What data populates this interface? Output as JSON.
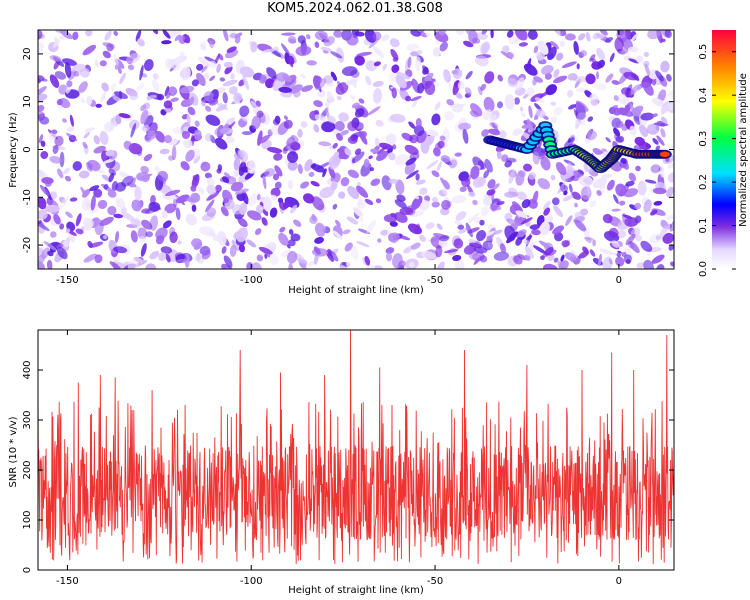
{
  "title": "KOM5.2024.062.01.38.G08",
  "chart_data": [
    {
      "type": "heatmap",
      "xlabel": "Height of straight line (km)",
      "ylabel": "Frequency (Hz)",
      "xlim": [
        -158,
        15
      ],
      "ylim": [
        -25,
        25
      ],
      "xticks": [
        -150,
        -100,
        -50,
        0
      ],
      "yticks": [
        -20,
        -10,
        0,
        10,
        20
      ],
      "colorbar": {
        "label": "Normalized spectral amplitude",
        "range": [
          0,
          0.55
        ],
        "ticks": [
          0.0,
          0.1,
          0.2,
          0.3,
          0.4,
          0.5
        ]
      },
      "signal_ridge": [
        {
          "x": -35,
          "y": 2
        },
        {
          "x": -30,
          "y": 1
        },
        {
          "x": -25,
          "y": 0
        },
        {
          "x": -20,
          "y": 5
        },
        {
          "x": -18,
          "y": -1
        },
        {
          "x": -12,
          "y": 0
        },
        {
          "x": -8,
          "y": -2
        },
        {
          "x": -5,
          "y": -4
        },
        {
          "x": -2,
          "y": -2
        },
        {
          "x": 0,
          "y": 0
        },
        {
          "x": 5,
          "y": -1
        },
        {
          "x": 10,
          "y": -1
        },
        {
          "x": 13,
          "y": -1
        }
      ]
    },
    {
      "type": "line",
      "xlabel": "Height of straight line (km)",
      "ylabel": "SNR (10 * v/v)",
      "xlim": [
        -158,
        15
      ],
      "ylim": [
        0,
        480
      ],
      "xticks": [
        -150,
        -100,
        -50,
        0
      ],
      "yticks": [
        0,
        100,
        200,
        300,
        400
      ],
      "color": "#ee3333",
      "noise_band": {
        "low": 60,
        "high": 250
      },
      "peaks": [
        {
          "x": -158,
          "y": 370
        },
        {
          "x": -147,
          "y": 375
        },
        {
          "x": -141,
          "y": 390
        },
        {
          "x": -137,
          "y": 385
        },
        {
          "x": -127,
          "y": 360
        },
        {
          "x": -118,
          "y": 330
        },
        {
          "x": -103,
          "y": 440
        },
        {
          "x": -92,
          "y": 395
        },
        {
          "x": -80,
          "y": 390
        },
        {
          "x": -73,
          "y": 480
        },
        {
          "x": -65,
          "y": 405
        },
        {
          "x": -42,
          "y": 440
        },
        {
          "x": -25,
          "y": 410
        },
        {
          "x": -10,
          "y": 400
        },
        {
          "x": -2,
          "y": 435
        },
        {
          "x": 4,
          "y": 400
        },
        {
          "x": 13,
          "y": 470
        }
      ]
    }
  ],
  "colors": {
    "noise_purple": "#7a2be2",
    "line_red": "#ee3333"
  }
}
